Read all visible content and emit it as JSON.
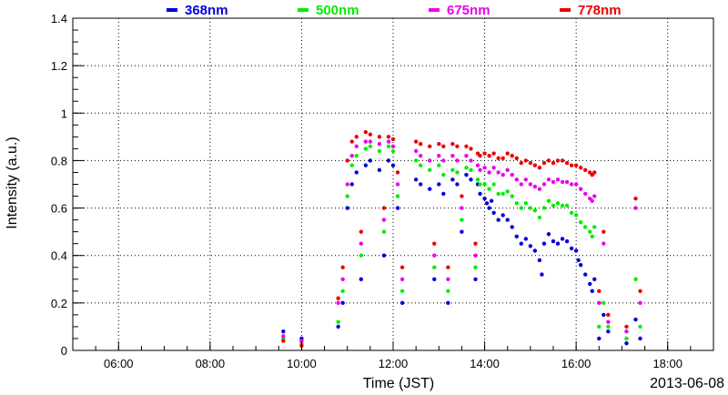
{
  "chart_data": {
    "type": "scatter",
    "title": "",
    "xlabel": "Time (JST)",
    "ylabel": "Intensity (a.u.)",
    "date_label": "2013-06-08",
    "x_unit": "hours (JST)",
    "xlim": [
      5.0,
      19.0
    ],
    "ylim": [
      0,
      1.4
    ],
    "x_ticks": [
      6,
      8,
      10,
      12,
      14,
      16,
      18
    ],
    "x_tick_labels": [
      "06:00",
      "08:00",
      "10:00",
      "12:00",
      "14:00",
      "16:00",
      "18:00"
    ],
    "y_ticks": [
      0,
      0.2,
      0.4,
      0.6,
      0.8,
      1,
      1.2,
      1.4
    ],
    "y_tick_labels": [
      "0",
      "0.2",
      "0.4",
      "0.6",
      "0.8",
      "1",
      "1.2",
      "1.4"
    ],
    "grid": true,
    "legend_position": "top",
    "series": [
      {
        "name": "368nm",
        "color": "#0000dd",
        "points": [
          [
            9.6,
            0.08
          ],
          [
            10.0,
            0.05
          ],
          [
            10.8,
            0.1
          ],
          [
            10.9,
            0.2
          ],
          [
            11.0,
            0.6
          ],
          [
            11.1,
            0.7
          ],
          [
            11.2,
            0.75
          ],
          [
            11.3,
            0.3
          ],
          [
            11.4,
            0.78
          ],
          [
            11.5,
            0.8
          ],
          [
            11.7,
            0.76
          ],
          [
            11.8,
            0.4
          ],
          [
            11.9,
            0.8
          ],
          [
            12.0,
            0.78
          ],
          [
            12.1,
            0.6
          ],
          [
            12.2,
            0.2
          ],
          [
            12.5,
            0.72
          ],
          [
            12.6,
            0.7
          ],
          [
            12.8,
            0.68
          ],
          [
            12.9,
            0.3
          ],
          [
            13.0,
            0.7
          ],
          [
            13.1,
            0.66
          ],
          [
            13.2,
            0.2
          ],
          [
            13.3,
            0.72
          ],
          [
            13.4,
            0.7
          ],
          [
            13.5,
            0.5
          ],
          [
            13.6,
            0.74
          ],
          [
            13.7,
            0.72
          ],
          [
            13.8,
            0.3
          ],
          [
            13.85,
            0.7
          ],
          [
            13.9,
            0.66
          ],
          [
            14.0,
            0.64
          ],
          [
            14.05,
            0.62
          ],
          [
            14.1,
            0.6
          ],
          [
            14.15,
            0.63
          ],
          [
            14.2,
            0.58
          ],
          [
            14.3,
            0.55
          ],
          [
            14.4,
            0.57
          ],
          [
            14.5,
            0.55
          ],
          [
            14.6,
            0.52
          ],
          [
            14.7,
            0.48
          ],
          [
            14.8,
            0.45
          ],
          [
            14.9,
            0.47
          ],
          [
            15.0,
            0.44
          ],
          [
            15.1,
            0.42
          ],
          [
            15.2,
            0.38
          ],
          [
            15.25,
            0.32
          ],
          [
            15.3,
            0.45
          ],
          [
            15.4,
            0.49
          ],
          [
            15.5,
            0.46
          ],
          [
            15.6,
            0.45
          ],
          [
            15.7,
            0.47
          ],
          [
            15.8,
            0.46
          ],
          [
            15.9,
            0.43
          ],
          [
            16.0,
            0.42
          ],
          [
            16.05,
            0.38
          ],
          [
            16.1,
            0.36
          ],
          [
            16.2,
            0.32
          ],
          [
            16.3,
            0.28
          ],
          [
            16.35,
            0.25
          ],
          [
            16.4,
            0.3
          ],
          [
            16.5,
            0.05
          ],
          [
            16.6,
            0.15
          ],
          [
            16.7,
            0.08
          ],
          [
            17.1,
            0.03
          ],
          [
            17.3,
            0.13
          ],
          [
            17.4,
            0.05
          ]
        ]
      },
      {
        "name": "500nm",
        "color": "#00ee00",
        "points": [
          [
            9.6,
            0.05
          ],
          [
            10.0,
            0.03
          ],
          [
            10.8,
            0.12
          ],
          [
            10.9,
            0.25
          ],
          [
            11.0,
            0.65
          ],
          [
            11.1,
            0.78
          ],
          [
            11.2,
            0.82
          ],
          [
            11.3,
            0.4
          ],
          [
            11.4,
            0.85
          ],
          [
            11.5,
            0.86
          ],
          [
            11.7,
            0.84
          ],
          [
            11.8,
            0.5
          ],
          [
            11.9,
            0.86
          ],
          [
            12.0,
            0.84
          ],
          [
            12.1,
            0.65
          ],
          [
            12.2,
            0.25
          ],
          [
            12.5,
            0.8
          ],
          [
            12.6,
            0.78
          ],
          [
            12.8,
            0.76
          ],
          [
            12.9,
            0.35
          ],
          [
            13.0,
            0.78
          ],
          [
            13.1,
            0.74
          ],
          [
            13.2,
            0.25
          ],
          [
            13.3,
            0.76
          ],
          [
            13.4,
            0.75
          ],
          [
            13.5,
            0.55
          ],
          [
            13.6,
            0.77
          ],
          [
            13.7,
            0.76
          ],
          [
            13.8,
            0.35
          ],
          [
            13.85,
            0.72
          ],
          [
            13.9,
            0.7
          ],
          [
            14.0,
            0.7
          ],
          [
            14.1,
            0.68
          ],
          [
            14.2,
            0.7
          ],
          [
            14.3,
            0.66
          ],
          [
            14.4,
            0.66
          ],
          [
            14.5,
            0.67
          ],
          [
            14.6,
            0.65
          ],
          [
            14.7,
            0.62
          ],
          [
            14.8,
            0.6
          ],
          [
            14.9,
            0.62
          ],
          [
            15.0,
            0.6
          ],
          [
            15.1,
            0.59
          ],
          [
            15.2,
            0.56
          ],
          [
            15.3,
            0.6
          ],
          [
            15.4,
            0.63
          ],
          [
            15.5,
            0.61
          ],
          [
            15.6,
            0.62
          ],
          [
            15.7,
            0.61
          ],
          [
            15.8,
            0.61
          ],
          [
            15.9,
            0.58
          ],
          [
            16.0,
            0.57
          ],
          [
            16.1,
            0.54
          ],
          [
            16.2,
            0.52
          ],
          [
            16.3,
            0.5
          ],
          [
            16.35,
            0.48
          ],
          [
            16.4,
            0.52
          ],
          [
            16.5,
            0.1
          ],
          [
            16.6,
            0.2
          ],
          [
            16.7,
            0.1
          ],
          [
            17.1,
            0.05
          ],
          [
            17.3,
            0.3
          ],
          [
            17.4,
            0.1
          ]
        ]
      },
      {
        "name": "675nm",
        "color": "#ee00ee",
        "points": [
          [
            9.6,
            0.06
          ],
          [
            10.0,
            0.04
          ],
          [
            10.8,
            0.2
          ],
          [
            10.9,
            0.3
          ],
          [
            11.0,
            0.7
          ],
          [
            11.1,
            0.82
          ],
          [
            11.2,
            0.86
          ],
          [
            11.3,
            0.45
          ],
          [
            11.4,
            0.88
          ],
          [
            11.5,
            0.88
          ],
          [
            11.7,
            0.87
          ],
          [
            11.8,
            0.55
          ],
          [
            11.9,
            0.88
          ],
          [
            12.0,
            0.86
          ],
          [
            12.1,
            0.7
          ],
          [
            12.2,
            0.3
          ],
          [
            12.5,
            0.84
          ],
          [
            12.6,
            0.82
          ],
          [
            12.8,
            0.8
          ],
          [
            12.9,
            0.4
          ],
          [
            13.0,
            0.82
          ],
          [
            13.1,
            0.8
          ],
          [
            13.2,
            0.3
          ],
          [
            13.3,
            0.82
          ],
          [
            13.4,
            0.8
          ],
          [
            13.5,
            0.6
          ],
          [
            13.6,
            0.82
          ],
          [
            13.7,
            0.8
          ],
          [
            13.8,
            0.4
          ],
          [
            13.85,
            0.78
          ],
          [
            13.9,
            0.76
          ],
          [
            14.0,
            0.77
          ],
          [
            14.1,
            0.75
          ],
          [
            14.2,
            0.77
          ],
          [
            14.3,
            0.75
          ],
          [
            14.4,
            0.74
          ],
          [
            14.5,
            0.76
          ],
          [
            14.6,
            0.74
          ],
          [
            14.7,
            0.72
          ],
          [
            14.8,
            0.7
          ],
          [
            14.9,
            0.72
          ],
          [
            15.0,
            0.7
          ],
          [
            15.1,
            0.69
          ],
          [
            15.2,
            0.68
          ],
          [
            15.3,
            0.7
          ],
          [
            15.4,
            0.72
          ],
          [
            15.5,
            0.71
          ],
          [
            15.6,
            0.72
          ],
          [
            15.7,
            0.71
          ],
          [
            15.8,
            0.71
          ],
          [
            15.9,
            0.7
          ],
          [
            16.0,
            0.7
          ],
          [
            16.1,
            0.68
          ],
          [
            16.2,
            0.66
          ],
          [
            16.3,
            0.64
          ],
          [
            16.35,
            0.63
          ],
          [
            16.4,
            0.65
          ],
          [
            16.5,
            0.2
          ],
          [
            16.6,
            0.45
          ],
          [
            16.7,
            0.12
          ],
          [
            17.1,
            0.08
          ],
          [
            17.3,
            0.6
          ],
          [
            17.4,
            0.2
          ]
        ]
      },
      {
        "name": "778nm",
        "color": "#ee0000",
        "points": [
          [
            9.6,
            0.04
          ],
          [
            10.0,
            0.02
          ],
          [
            10.8,
            0.22
          ],
          [
            10.9,
            0.35
          ],
          [
            11.0,
            0.8
          ],
          [
            11.1,
            0.88
          ],
          [
            11.2,
            0.9
          ],
          [
            11.3,
            0.5
          ],
          [
            11.4,
            0.92
          ],
          [
            11.5,
            0.91
          ],
          [
            11.7,
            0.9
          ],
          [
            11.8,
            0.6
          ],
          [
            11.9,
            0.9
          ],
          [
            12.0,
            0.89
          ],
          [
            12.1,
            0.75
          ],
          [
            12.2,
            0.35
          ],
          [
            12.5,
            0.88
          ],
          [
            12.6,
            0.87
          ],
          [
            12.8,
            0.86
          ],
          [
            12.9,
            0.45
          ],
          [
            13.0,
            0.87
          ],
          [
            13.1,
            0.86
          ],
          [
            13.2,
            0.35
          ],
          [
            13.3,
            0.87
          ],
          [
            13.4,
            0.86
          ],
          [
            13.5,
            0.65
          ],
          [
            13.6,
            0.86
          ],
          [
            13.7,
            0.85
          ],
          [
            13.8,
            0.45
          ],
          [
            13.85,
            0.83
          ],
          [
            13.9,
            0.82
          ],
          [
            14.0,
            0.83
          ],
          [
            14.1,
            0.82
          ],
          [
            14.2,
            0.83
          ],
          [
            14.3,
            0.81
          ],
          [
            14.4,
            0.81
          ],
          [
            14.5,
            0.83
          ],
          [
            14.6,
            0.82
          ],
          [
            14.7,
            0.81
          ],
          [
            14.8,
            0.79
          ],
          [
            14.9,
            0.8
          ],
          [
            15.0,
            0.79
          ],
          [
            15.1,
            0.78
          ],
          [
            15.2,
            0.77
          ],
          [
            15.3,
            0.79
          ],
          [
            15.4,
            0.8
          ],
          [
            15.5,
            0.79
          ],
          [
            15.6,
            0.8
          ],
          [
            15.7,
            0.8
          ],
          [
            15.8,
            0.79
          ],
          [
            15.9,
            0.78
          ],
          [
            16.0,
            0.78
          ],
          [
            16.1,
            0.77
          ],
          [
            16.2,
            0.76
          ],
          [
            16.3,
            0.75
          ],
          [
            16.35,
            0.74
          ],
          [
            16.4,
            0.75
          ],
          [
            16.5,
            0.25
          ],
          [
            16.6,
            0.5
          ],
          [
            16.7,
            0.15
          ],
          [
            17.1,
            0.1
          ],
          [
            17.3,
            0.64
          ],
          [
            17.4,
            0.25
          ]
        ]
      }
    ]
  }
}
